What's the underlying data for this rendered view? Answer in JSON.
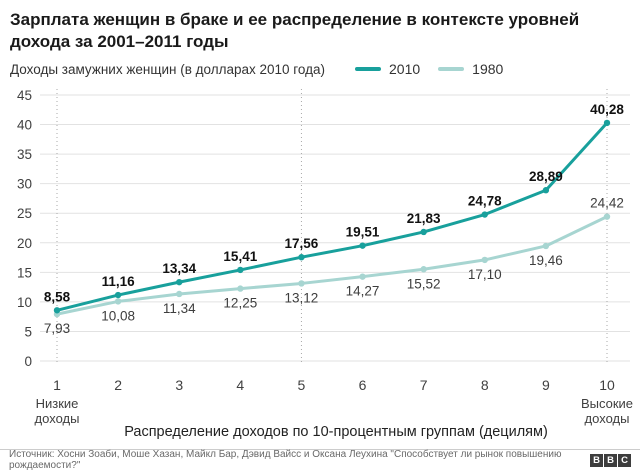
{
  "header": {
    "title_line1": "Зарплата женщин в браке и ее распределение в контексте уровней",
    "title_line2": "дохода за 2001–2011 годы"
  },
  "chart_data": {
    "type": "line",
    "title": "Зарплата женщин в браке и ее распределение в контексте уровней дохода за 2001–2011 годы",
    "subtitle": "Доходы замужних женщин (в долларах 2010 года)",
    "x": [
      1,
      2,
      3,
      4,
      5,
      6,
      7,
      8,
      9,
      10
    ],
    "xlabel": "Распределение доходов по 10-процентным группам (децилям)",
    "x_first_annotation": "Низкие доходы",
    "x_last_annotation": "Высокие доходы",
    "ylim": [
      0,
      45
    ],
    "yticks": [
      45,
      40,
      35,
      30,
      25,
      20,
      15,
      10,
      5,
      0
    ],
    "grid": "horizontal",
    "dotted_vlines_at_x": [
      1,
      5,
      10
    ],
    "legend_position": "top-right",
    "series": [
      {
        "name": "2010",
        "color": "#18a09c",
        "values": [
          8.58,
          11.16,
          13.34,
          15.41,
          17.56,
          19.51,
          21.83,
          24.78,
          28.89,
          40.28
        ],
        "labels": [
          "8,58",
          "11,16",
          "13,34",
          "15,41",
          "17,56",
          "19,51",
          "21,83",
          "24,78",
          "28,89",
          "40,28"
        ],
        "bold_labels": true,
        "label_positions": [
          "above",
          "above",
          "above",
          "above",
          "above",
          "above",
          "above",
          "above",
          "above",
          "above"
        ]
      },
      {
        "name": "1980",
        "color": "#a7d5d1",
        "values": [
          7.93,
          10.08,
          11.34,
          12.25,
          13.12,
          14.27,
          15.52,
          17.1,
          19.46,
          24.42
        ],
        "labels": [
          "7,93",
          "10,08",
          "11,34",
          "12,25",
          "13,12",
          "14,27",
          "15,52",
          "17,10",
          "19,46",
          "24,42"
        ],
        "bold_labels": false,
        "label_positions": [
          "below",
          "below",
          "below",
          "below",
          "below",
          "below",
          "below",
          "below",
          "below",
          "above"
        ]
      }
    ]
  },
  "footer": {
    "source": "Источник: Хосни Зоаби, Моше Хазан, Майкл Бар, Дэвид Вайсс и Оксана Леухина \"Способствует ли рынок повышению рождаемости?\"",
    "logo_letters": [
      "B",
      "B",
      "C"
    ]
  }
}
